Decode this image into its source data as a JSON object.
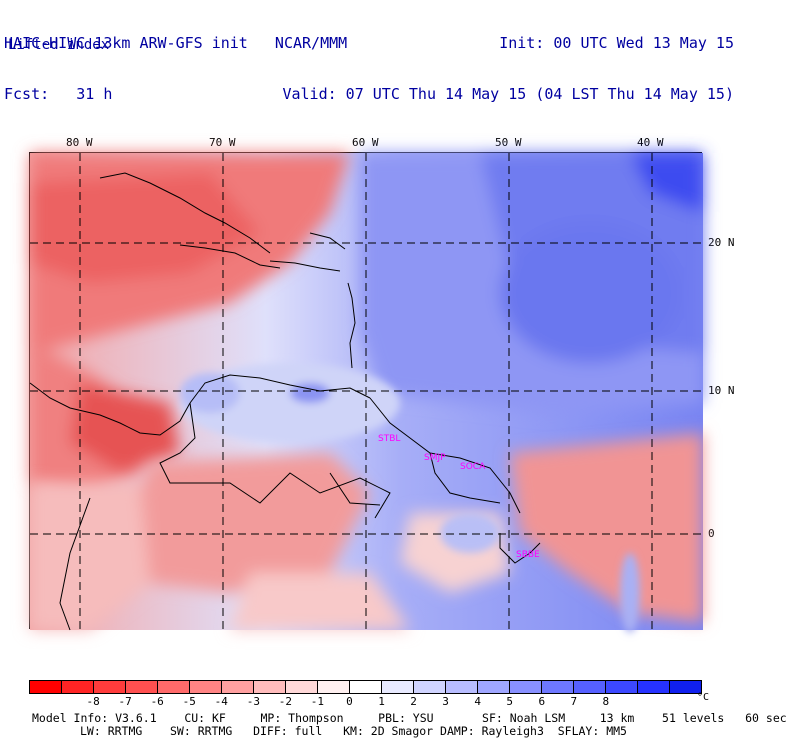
{
  "header": {
    "left_line1": "HAIC-HIWC 13km ARW-GFS init   NCAR/MMM",
    "left_line2": "Fcst:   31 h",
    "right_line1": "Init: 00 UTC Wed 13 May 15",
    "right_line2": "Valid: 07 UTC Thu 14 May 15 (04 LST Thu 14 May 15)",
    "field": "Lifted index"
  },
  "map": {
    "lon_labels": [
      "80 W",
      "70 W",
      "60 W",
      "50 W",
      "40 W"
    ],
    "lat_labels": [
      "20 N",
      "10 N",
      "0"
    ],
    "sites": [
      "STBL",
      "SMJP",
      "SOCA",
      "SBBE"
    ]
  },
  "colorbar": {
    "colors": [
      "#ff0000",
      "#ff2424",
      "#ff3c3c",
      "#ff5050",
      "#ff6a6a",
      "#ff8484",
      "#ffa0a0",
      "#ffbcbc",
      "#ffd8d8",
      "#fff0f0",
      "#ffffff",
      "#e8eaff",
      "#d0d4ff",
      "#b8bdff",
      "#9fa6ff",
      "#8890ff",
      "#6e78ff",
      "#5660ff",
      "#3c48ff",
      "#2632ff",
      "#1020ee"
    ],
    "ticks": [
      "-8",
      "-7",
      "-6",
      "-5",
      "-4",
      "-3",
      "-2",
      "-1",
      "0",
      "1",
      "2",
      "3",
      "4",
      "5",
      "6",
      "7",
      "8"
    ],
    "unit": "°C"
  },
  "model_info": {
    "line1": "Model Info: V3.6.1    CU: KF     MP: Thompson     PBL: YSU       SF: Noah LSM     13 km    51 levels   60 sec",
    "line2": "LW: RRTMG    SW: RRTMG   DIFF: full   KM: 2D Smagor DAMP: Rayleigh3  SFLAY: MM5"
  }
}
